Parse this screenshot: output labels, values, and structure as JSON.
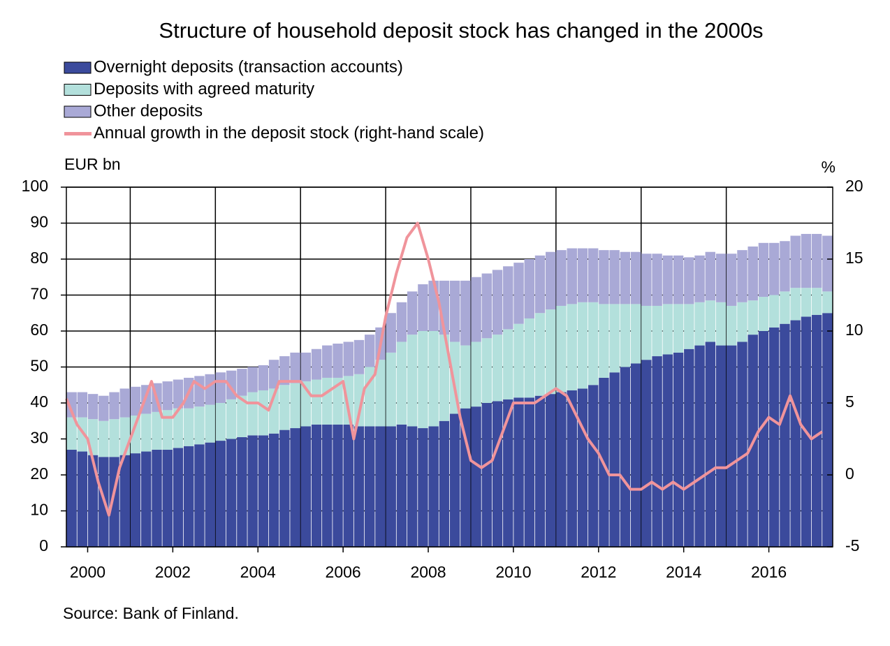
{
  "chart_data": {
    "type": "bar",
    "stacked": true,
    "title": "Structure of household deposit stock has changed in the 2000s",
    "y_label": "EUR bn",
    "y2_label": "%",
    "source": "Source: Bank of Finland.",
    "x": [
      2000,
      2000.25,
      2000.5,
      2000.75,
      2001,
      2001.25,
      2001.5,
      2001.75,
      2002,
      2002.25,
      2002.5,
      2002.75,
      2003,
      2003.25,
      2003.5,
      2003.75,
      2004,
      2004.25,
      2004.5,
      2004.75,
      2005,
      2005.25,
      2005.5,
      2005.75,
      2006,
      2006.25,
      2006.5,
      2006.75,
      2007,
      2007.25,
      2007.5,
      2007.75,
      2008,
      2008.25,
      2008.5,
      2008.75,
      2009,
      2009.25,
      2009.5,
      2009.75,
      2010,
      2010.25,
      2010.5,
      2010.75,
      2011,
      2011.25,
      2011.5,
      2011.75,
      2012,
      2012.25,
      2012.5,
      2012.75,
      2013,
      2013.25,
      2013.5,
      2013.75,
      2014,
      2014.25,
      2014.5,
      2014.75,
      2015,
      2015.25,
      2015.5,
      2015.75,
      2016,
      2016.25,
      2016.5,
      2016.75,
      2017,
      2017.25,
      2017.5,
      2017.75
    ],
    "series": [
      {
        "name": "Overnight deposits (transaction accounts)",
        "color": "#3b4a9c",
        "values": [
          27,
          26.5,
          25.5,
          25,
          25,
          25.5,
          26,
          26.5,
          27,
          27,
          27.5,
          28,
          28.5,
          29,
          29.5,
          30,
          30.5,
          31,
          31,
          31.5,
          32.5,
          33,
          33.5,
          34,
          34,
          34,
          34,
          33.5,
          33.5,
          33.5,
          33.5,
          34,
          33.5,
          33,
          33.5,
          35,
          37,
          38.5,
          39,
          40,
          40.5,
          41,
          41.5,
          41.5,
          42,
          42.5,
          43,
          43.5,
          44,
          45,
          47,
          48.5,
          50,
          51,
          52,
          53,
          53.5,
          54,
          55,
          56,
          57,
          56,
          56,
          57,
          59,
          60,
          61,
          62,
          63,
          64,
          64.5,
          65
        ]
      },
      {
        "name": "Deposits with agreed maturity",
        "color": "#b3e0dc",
        "values": [
          9,
          9.5,
          10,
          10,
          10.5,
          10.5,
          10.5,
          10.5,
          10.5,
          11,
          11,
          10.5,
          10.5,
          10.5,
          10.5,
          11,
          11.5,
          12,
          12.5,
          12.5,
          12.5,
          12.5,
          12.5,
          12.5,
          13,
          13,
          13.5,
          14.5,
          16.5,
          18.5,
          20.5,
          23,
          25.5,
          27,
          26.5,
          24,
          20,
          17.5,
          18,
          18,
          18.5,
          19.5,
          20.5,
          22,
          23,
          23.5,
          24,
          24,
          24,
          23,
          20.5,
          19,
          17.5,
          16.5,
          15,
          14,
          14,
          13.5,
          12.5,
          12,
          11.5,
          12,
          11,
          11,
          9.5,
          9.5,
          9,
          9,
          9,
          8,
          7.5,
          6
        ]
      },
      {
        "name": "Other deposits",
        "color": "#a9a9d6",
        "values": [
          7,
          7,
          7,
          7,
          7.5,
          8,
          8,
          8,
          8,
          8,
          8,
          8.5,
          8.5,
          8.5,
          8.5,
          8,
          7.5,
          7,
          7,
          8,
          8,
          8.5,
          8,
          8.5,
          9,
          9.5,
          9.5,
          9.5,
          9,
          9,
          11,
          11,
          12,
          13,
          14,
          15,
          17,
          18,
          18,
          18,
          18,
          17.5,
          17,
          16.5,
          16,
          16,
          15.5,
          15.5,
          15,
          15,
          15,
          15,
          14.5,
          14.5,
          14.5,
          14.5,
          13.5,
          13.5,
          13,
          13,
          13.5,
          13.5,
          14.5,
          14.5,
          15,
          15,
          14.5,
          14,
          14.5,
          15,
          15,
          15.5
        ]
      },
      {
        "name": "Annual growth in the deposit stock (right-hand scale)",
        "color": "#f0949b",
        "type": "line",
        "axis": "y2",
        "values": [
          5.3,
          3.5,
          2.5,
          -0.5,
          -2.8,
          0.5,
          2.5,
          4.5,
          6.5,
          4,
          4,
          5,
          6.5,
          6,
          6.5,
          6.5,
          5.5,
          5,
          5,
          4.5,
          6.5,
          6.5,
          6.5,
          5.5,
          5.5,
          6,
          6.5,
          2.5,
          6,
          7,
          11,
          14,
          16.5,
          17.5,
          15,
          12,
          8,
          4,
          1,
          0.5,
          1,
          3,
          5,
          5,
          5,
          5.5,
          6,
          5.5,
          4,
          2.5,
          1.5,
          0,
          0,
          -1,
          -1,
          -0.5,
          -1,
          -0.5,
          -1,
          -0.5,
          0,
          0.5,
          0.5,
          1,
          1.5,
          3,
          4,
          3.5,
          5.5,
          3.5,
          2.5,
          3
        ]
      }
    ],
    "xlim": [
      2000,
      2018
    ],
    "xticks": [
      {
        "value": 2000.5,
        "label": "2000"
      },
      {
        "value": 2002.5,
        "label": "2002"
      },
      {
        "value": 2004.5,
        "label": "2004"
      },
      {
        "value": 2006.5,
        "label": "2006"
      },
      {
        "value": 2008.5,
        "label": "2008"
      },
      {
        "value": 2010.5,
        "label": "2010"
      },
      {
        "value": 2012.5,
        "label": "2012"
      },
      {
        "value": 2014.5,
        "label": "2014"
      },
      {
        "value": 2016.5,
        "label": "2016"
      }
    ],
    "ylim": [
      0,
      100
    ],
    "yticks": [
      0,
      10,
      20,
      30,
      40,
      50,
      60,
      70,
      80,
      90,
      100
    ],
    "y2lim": [
      -5,
      20
    ],
    "y2ticks": [
      -5,
      0,
      5,
      10,
      15,
      20
    ],
    "grid": true,
    "legend": "top-left"
  }
}
